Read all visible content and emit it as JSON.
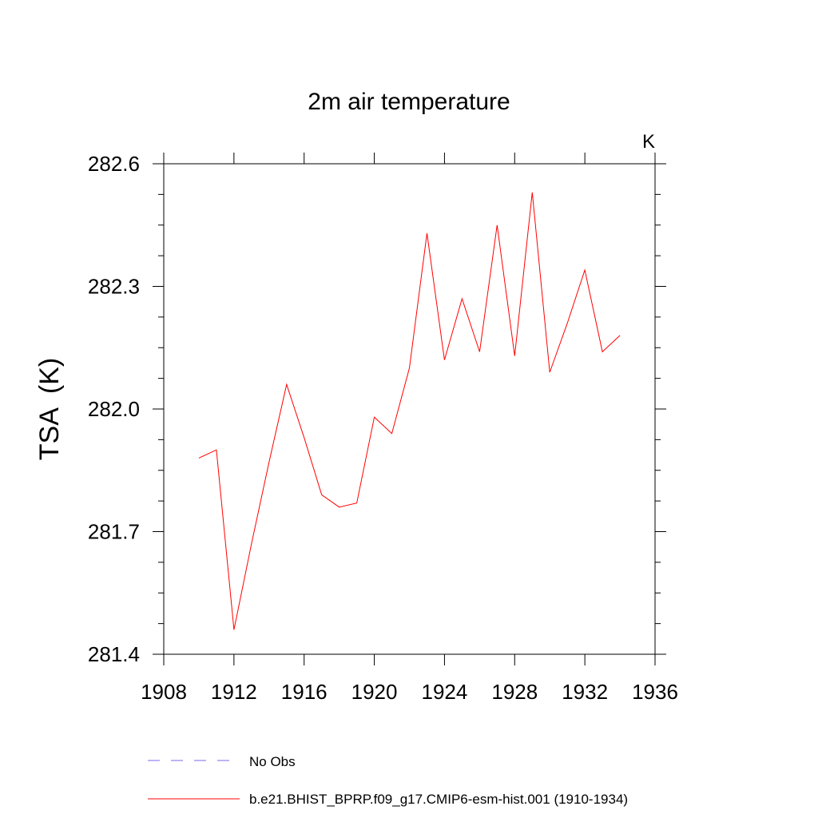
{
  "chart_data": {
    "type": "line",
    "title": "2m air temperature",
    "units_label": "K",
    "ylabel": "TSA  (K)",
    "xlabel": "",
    "xlim": [
      1908,
      1936
    ],
    "ylim": [
      281.4,
      282.6
    ],
    "x_ticks": [
      1908,
      1912,
      1916,
      1920,
      1924,
      1928,
      1932,
      1936
    ],
    "x_tick_labels": [
      "1908",
      "1912",
      "1916",
      "1920",
      "1924",
      "1928",
      "1932",
      "1936"
    ],
    "y_ticks": [
      281.4,
      281.7,
      282.0,
      282.3,
      282.6
    ],
    "y_tick_labels": [
      "281.4",
      "281.7",
      "282.0",
      "282.3",
      "282.6"
    ],
    "series": [
      {
        "name": "b.e21.BHIST_BPRP.f09_g17.CMIP6-esm-hist.001 (1910-1934)",
        "color": "#ff0000",
        "style": "solid",
        "x": [
          1910,
          1911,
          1912,
          1913,
          1914,
          1915,
          1916,
          1917,
          1918,
          1919,
          1920,
          1921,
          1922,
          1923,
          1924,
          1925,
          1926,
          1927,
          1928,
          1929,
          1930,
          1931,
          1932,
          1933,
          1934
        ],
        "y": [
          281.88,
          281.9,
          281.46,
          281.67,
          281.87,
          282.06,
          281.93,
          281.79,
          281.76,
          281.77,
          281.98,
          281.94,
          282.1,
          282.43,
          282.12,
          282.27,
          282.14,
          282.45,
          282.13,
          282.53,
          282.09,
          282.21,
          282.34,
          282.14,
          282.18
        ]
      }
    ],
    "legend": [
      {
        "label": "No Obs",
        "color": "#7b68ee",
        "style": "dashed"
      },
      {
        "label": "b.e21.BHIST_BPRP.f09_g17.CMIP6-esm-hist.001 (1910-1934)",
        "color": "#ff0000",
        "style": "solid"
      }
    ],
    "legend_position": "bottom"
  }
}
